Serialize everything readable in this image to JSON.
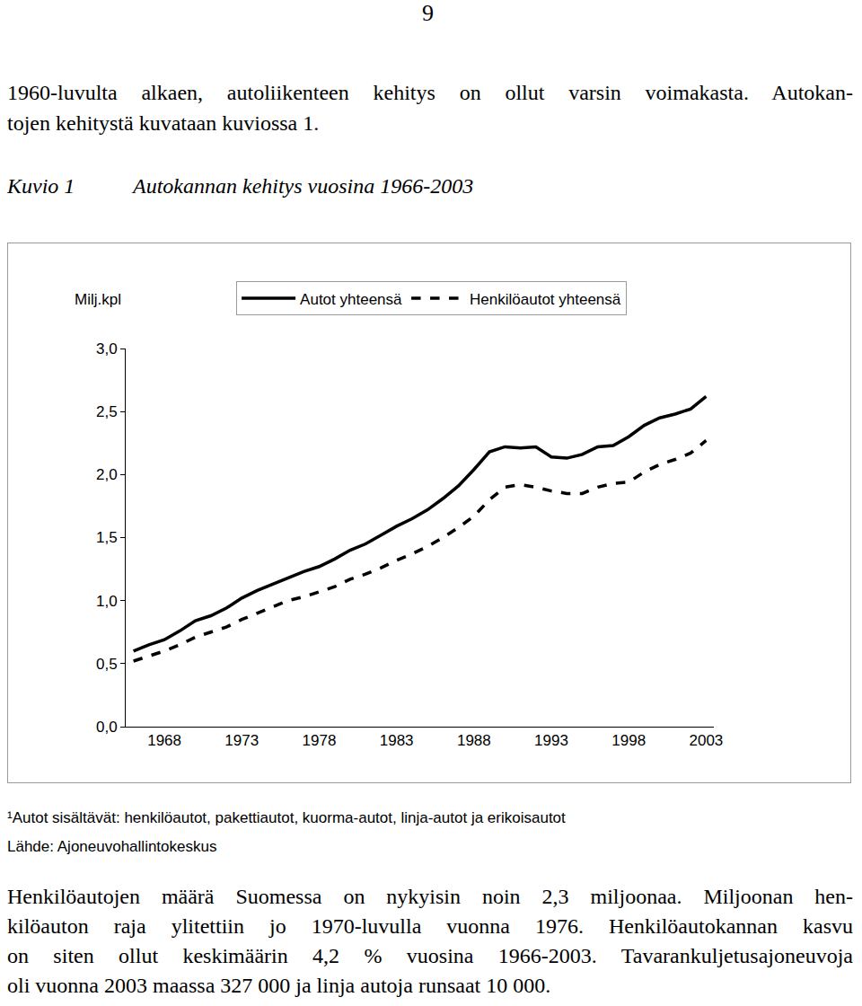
{
  "page_number": "9",
  "intro_lines": [
    "1960-luvulta alkaen, autoliikenteen kehitys on ollut varsin voimakasta. Autokan-",
    "tojen kehitystä kuvataan kuviossa 1."
  ],
  "figure": {
    "label": "Kuvio 1",
    "caption": "Autokannan kehitys vuosina 1966-2003"
  },
  "chart_data": {
    "type": "line",
    "ylabel": "Milj.kpl",
    "x": [
      1966,
      1967,
      1968,
      1969,
      1970,
      1971,
      1972,
      1973,
      1974,
      1975,
      1976,
      1977,
      1978,
      1979,
      1980,
      1981,
      1982,
      1983,
      1984,
      1985,
      1986,
      1987,
      1988,
      1989,
      1990,
      1991,
      1992,
      1993,
      1994,
      1995,
      1996,
      1997,
      1998,
      1999,
      2000,
      2001,
      2002,
      2003
    ],
    "series": [
      {
        "name": "Autot yhteensä",
        "color": "#000000",
        "line_style": "solid",
        "values": [
          0.6,
          0.65,
          0.69,
          0.76,
          0.84,
          0.88,
          0.94,
          1.02,
          1.08,
          1.13,
          1.18,
          1.23,
          1.27,
          1.33,
          1.4,
          1.45,
          1.52,
          1.59,
          1.65,
          1.72,
          1.81,
          1.91,
          2.04,
          2.18,
          2.22,
          2.21,
          2.22,
          2.14,
          2.13,
          2.16,
          2.22,
          2.23,
          2.3,
          2.39,
          2.45,
          2.48,
          2.52,
          2.62
        ]
      },
      {
        "name": "Henkilöautot yhteensä",
        "color": "#000000",
        "line_style": "dash",
        "values": [
          0.52,
          0.56,
          0.6,
          0.65,
          0.71,
          0.75,
          0.79,
          0.85,
          0.9,
          0.95,
          1.0,
          1.03,
          1.07,
          1.11,
          1.17,
          1.21,
          1.26,
          1.32,
          1.37,
          1.43,
          1.5,
          1.58,
          1.67,
          1.8,
          1.9,
          1.92,
          1.9,
          1.87,
          1.85,
          1.85,
          1.9,
          1.93,
          1.94,
          2.02,
          2.08,
          2.12,
          2.17,
          2.27
        ]
      }
    ],
    "xlim": [
      1965.5,
      2003.5
    ],
    "xticks": [
      1968,
      1973,
      1978,
      1983,
      1988,
      1993,
      1998,
      2003
    ],
    "ylim": [
      0,
      3
    ],
    "yticks": [
      {
        "value": 0,
        "label": "0,0"
      },
      {
        "value": 0.5,
        "label": "0,5"
      },
      {
        "value": 1,
        "label": "1,0"
      },
      {
        "value": 1.5,
        "label": "1,5"
      },
      {
        "value": 2,
        "label": "2,0"
      },
      {
        "value": 2.5,
        "label": "2,5"
      },
      {
        "value": 3,
        "label": "3,0"
      }
    ],
    "grid": false,
    "legend": "top"
  },
  "footnote": "¹Autot sisältävät: henkilöautot, pakettiautot, kuorma-autot, linja-autot ja erikoisautot",
  "source": "Lähde: Ajoneuvohallintokeskus",
  "body_lines": [
    "Henkilöautojen määrä Suomessa on nykyisin noin 2,3 miljoonaa. Miljoonan hen-",
    "kilöauton raja ylitettiin jo 1970-luvulla vuonna 1976. Henkilöautokannan kasvu",
    "on siten ollut keskimäärin 4,2 % vuosina 1966-2003. Tavarankuljetusajoneuvoja",
    "oli vuonna 2003 maassa 327 000 ja linja autoja runsaat 10 000."
  ]
}
